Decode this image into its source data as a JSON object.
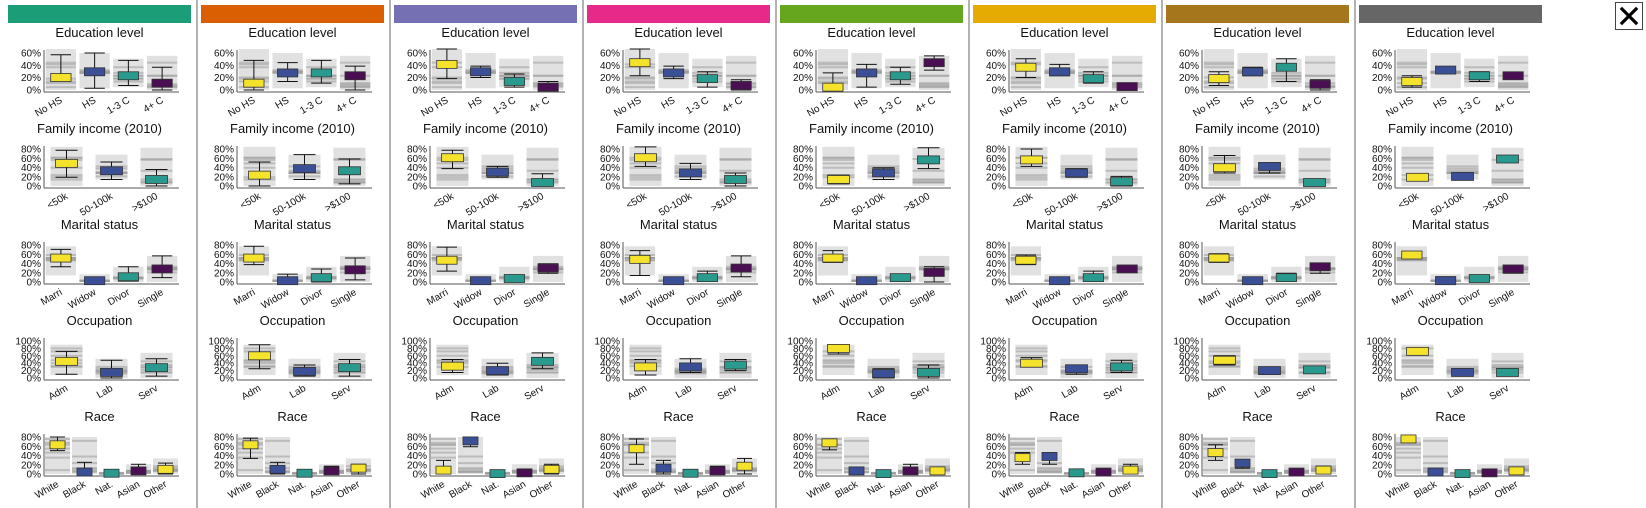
{
  "palette": {
    "clusters": [
      "#1b9e77",
      "#d95f02",
      "#7570b3",
      "#e7298a",
      "#66a61e",
      "#e6ab02",
      "#a6761d",
      "#666666"
    ],
    "marker_by_cat": [
      "#f4e22c",
      "#3b4f96",
      "#2a9a8e",
      "#4a0f52"
    ],
    "background_box": "#9e9e9e",
    "background_line": "#c8c8c8",
    "axis": "#555555"
  },
  "close_label": "×",
  "panels": [
    {
      "title": "Education level",
      "ticks": [
        "60%",
        "40%",
        "20%",
        "0%"
      ],
      "categories": [
        "No HS",
        "HS",
        "1-3 C",
        "4+ C"
      ]
    },
    {
      "title": "Family income (2010)",
      "ticks": [
        "80%",
        "60%",
        "40%",
        "20%",
        "0%"
      ],
      "categories": [
        "<50k",
        "50-100k",
        ">$100"
      ]
    },
    {
      "title": "Marital status",
      "ticks": [
        "80%",
        "60%",
        "40%",
        "20%",
        "0%"
      ],
      "categories": [
        "Marri",
        "Widow",
        "Divor",
        "Single"
      ]
    },
    {
      "title": "Occupation",
      "ticks": [
        "100%",
        "80%",
        "60%",
        "40%",
        "20%",
        "0%"
      ],
      "categories": [
        "Adm",
        "Lab",
        "Serv"
      ]
    },
    {
      "title": "Race",
      "ticks": [
        "80%",
        "60%",
        "40%",
        "20%",
        "0%"
      ],
      "categories": [
        "White",
        "Black",
        "Nat.",
        "Asian",
        "Other"
      ]
    }
  ],
  "chart_data": {
    "type": "boxplot-grid",
    "y_unit": "percent",
    "clusters": 8,
    "panels": [
      {
        "title": "Education level",
        "ylim": [
          0,
          65
        ],
        "categories": [
          "No HS",
          "HS",
          "1-3 C",
          "4+ C"
        ],
        "clusters": [
          [
            [
              22,
              20,
              62
            ],
            [
              32,
              3,
              65
            ],
            [
              25,
              8,
              52
            ],
            [
              12,
              0,
              40
            ]
          ],
          [
            [
              12,
              0,
              52
            ],
            [
              30,
              15,
              48
            ],
            [
              30,
              12,
              52
            ],
            [
              25,
              0,
              42
            ]
          ],
          [
            [
              45,
              20,
              72
            ],
            [
              32,
              22,
              42
            ],
            [
              15,
              5,
              28
            ],
            [
              5,
              0,
              15
            ]
          ],
          [
            [
              48,
              25,
              72
            ],
            [
              30,
              20,
              42
            ],
            [
              20,
              5,
              32
            ],
            [
              8,
              0,
              18
            ]
          ],
          [
            [
              5,
              0,
              30
            ],
            [
              30,
              5,
              45
            ],
            [
              25,
              10,
              40
            ],
            [
              48,
              35,
              60
            ]
          ],
          [
            [
              40,
              22,
              55
            ],
            [
              32,
              25,
              45
            ],
            [
              20,
              12,
              32
            ],
            [
              6,
              0,
              12
            ]
          ],
          [
            [
              20,
              8,
              32
            ],
            [
              32,
              25,
              40
            ],
            [
              40,
              15,
              55
            ],
            [
              10,
              0,
              18
            ]
          ],
          [
            [
              15,
              5,
              25
            ],
            [
              35,
              30,
              38
            ],
            [
              25,
              15,
              32
            ],
            [
              25,
              25,
              25
            ]
          ]
        ]
      },
      {
        "title": "Family income (2010)",
        "ylim": [
          0,
          85
        ],
        "categories": [
          "<50k",
          "50-100k",
          ">$100"
        ],
        "clusters": [
          [
            [
              52,
              20,
              82
            ],
            [
              35,
              15,
              55
            ],
            [
              15,
              0,
              38
            ]
          ],
          [
            [
              25,
              0,
              55
            ],
            [
              40,
              15,
              72
            ],
            [
              35,
              5,
              62
            ]
          ],
          [
            [
              65,
              40,
              82
            ],
            [
              32,
              20,
              45
            ],
            [
              8,
              0,
              28
            ]
          ],
          [
            [
              65,
              45,
              90
            ],
            [
              30,
              15,
              52
            ],
            [
              15,
              0,
              30
            ]
          ],
          [
            [
              15,
              5,
              25
            ],
            [
              30,
              15,
              42
            ],
            [
              60,
              40,
              88
            ]
          ],
          [
            [
              60,
              45,
              85
            ],
            [
              30,
              20,
              40
            ],
            [
              10,
              0,
              22
            ]
          ],
          [
            [
              42,
              30,
              70
            ],
            [
              45,
              30,
              52
            ],
            [
              8,
              5,
              12
            ]
          ],
          [
            [
              20,
              15,
              25
            ],
            [
              22,
              15,
              30
            ],
            [
              62,
              62,
              62
            ]
          ]
        ]
      },
      {
        "title": "Marital status",
        "ylim": [
          0,
          85
        ],
        "categories": [
          "Marri",
          "Widow",
          "Divor",
          "Single"
        ],
        "clusters": [
          [
            [
              55,
              35,
              75
            ],
            [
              3,
              0,
              10
            ],
            [
              12,
              2,
              35
            ],
            [
              30,
              10,
              60
            ]
          ],
          [
            [
              55,
              40,
              82
            ],
            [
              3,
              0,
              18
            ],
            [
              10,
              0,
              30
            ],
            [
              28,
              5,
              55
            ]
          ],
          [
            [
              50,
              25,
              80
            ],
            [
              3,
              0,
              5
            ],
            [
              8,
              3,
              15
            ],
            [
              32,
              20,
              42
            ]
          ],
          [
            [
              52,
              15,
              72
            ],
            [
              3,
              0,
              8
            ],
            [
              10,
              2,
              25
            ],
            [
              32,
              12,
              60
            ]
          ],
          [
            [
              55,
              45,
              72
            ],
            [
              3,
              0,
              8
            ],
            [
              10,
              5,
              15
            ],
            [
              22,
              0,
              35
            ]
          ],
          [
            [
              50,
              40,
              62
            ],
            [
              3,
              0,
              5
            ],
            [
              10,
              5,
              25
            ],
            [
              30,
              25,
              38
            ]
          ],
          [
            [
              55,
              45,
              65
            ],
            [
              3,
              0,
              5
            ],
            [
              10,
              5,
              20
            ],
            [
              35,
              20,
              42
            ]
          ],
          [
            [
              62,
              55,
              70
            ],
            [
              3,
              0,
              12
            ],
            [
              8,
              2,
              12
            ],
            [
              30,
              20,
              35
            ]
          ]
        ]
      },
      {
        "title": "Occupation",
        "ylim": [
          0,
          100
        ],
        "categories": [
          "Adm",
          "Lab",
          "Serv"
        ],
        "clusters": [
          [
            [
              45,
              10,
              72
            ],
            [
              15,
              0,
              48
            ],
            [
              28,
              5,
              52
            ]
          ],
          [
            [
              60,
              25,
              90
            ],
            [
              18,
              5,
              35
            ],
            [
              28,
              5,
              50
            ]
          ],
          [
            [
              32,
              15,
              50
            ],
            [
              20,
              8,
              40
            ],
            [
              45,
              25,
              68
            ]
          ],
          [
            [
              30,
              8,
              50
            ],
            [
              30,
              15,
              52
            ],
            [
              35,
              20,
              50
            ]
          ],
          [
            [
              80,
              65,
              85
            ],
            [
              12,
              0,
              25
            ],
            [
              15,
              0,
              35
            ]
          ],
          [
            [
              40,
              30,
              55
            ],
            [
              25,
              10,
              35
            ],
            [
              30,
              15,
              48
            ]
          ],
          [
            [
              48,
              35,
              60
            ],
            [
              20,
              15,
              25
            ],
            [
              22,
              12,
              30
            ]
          ],
          [
            [
              72,
              65,
              78
            ],
            [
              15,
              8,
              25
            ],
            [
              15,
              10,
              25
            ]
          ]
        ]
      },
      {
        "title": "Race",
        "ylim": [
          0,
          95
        ],
        "categories": [
          "White",
          "Black",
          "Nat.",
          "Asian",
          "Other"
        ],
        "clusters": [
          [
            [
              75,
              60,
              95
            ],
            [
              5,
              0,
              30
            ],
            [
              2,
              0,
              5
            ],
            [
              8,
              0,
              25
            ],
            [
              12,
              0,
              28
            ]
          ],
          [
            [
              75,
              40,
              92
            ],
            [
              12,
              0,
              30
            ],
            [
              2,
              0,
              5
            ],
            [
              8,
              0,
              20
            ],
            [
              15,
              0,
              25
            ]
          ],
          [
            [
              10,
              0,
              35
            ],
            [
              85,
              70,
              95
            ],
            [
              1,
              0,
              5
            ],
            [
              3,
              0,
              8
            ],
            [
              12,
              0,
              25
            ]
          ],
          [
            [
              65,
              25,
              90
            ],
            [
              15,
              0,
              35
            ],
            [
              2,
              0,
              5
            ],
            [
              8,
              0,
              20
            ],
            [
              20,
              0,
              40
            ]
          ],
          [
            [
              80,
              62,
              90
            ],
            [
              8,
              0,
              12
            ],
            [
              1,
              0,
              2
            ],
            [
              8,
              0,
              25
            ],
            [
              8,
              0,
              12
            ]
          ],
          [
            [
              42,
              25,
              55
            ],
            [
              45,
              25,
              55
            ],
            [
              3,
              0,
              5
            ],
            [
              5,
              0,
              8
            ],
            [
              10,
              0,
              25
            ]
          ],
          [
            [
              55,
              35,
              75
            ],
            [
              28,
              15,
              35
            ],
            [
              1,
              0,
              2
            ],
            [
              5,
              0,
              10
            ],
            [
              10,
              0,
              20
            ]
          ],
          [
            [
              90,
              85,
              92
            ],
            [
              5,
              0,
              10
            ],
            [
              1,
              0,
              2
            ],
            [
              3,
              0,
              8
            ],
            [
              8,
              0,
              15
            ]
          ]
        ]
      }
    ]
  }
}
